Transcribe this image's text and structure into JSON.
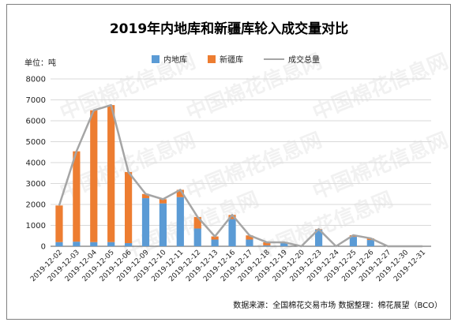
{
  "title": "2019年内地库和新疆库轮入成交量对比",
  "unit_label": "单位：吨",
  "source_text": "数据来源：全国棉花交易市场  数据整理：棉花展望（BCO）",
  "watermark_text": "中国棉花信息网",
  "watermark_url": "www.cottonchina.org.cn",
  "colors": {
    "inland": "#5b9bd5",
    "xinjiang": "#ed7d31",
    "total": "#a5a5a5",
    "grid": "#d9d9d9",
    "axis": "#595959"
  },
  "chart_data": {
    "type": "bar",
    "stacked": true,
    "title": "2019年内地库和新疆库轮入成交量对比",
    "ylabel": "单位：吨",
    "ylim": [
      0,
      8000
    ],
    "yticks": [
      0,
      1000,
      2000,
      3000,
      4000,
      5000,
      6000,
      7000,
      8000
    ],
    "grid": true,
    "legend_position": "top",
    "categories": [
      "2019-12-02",
      "2019-12-03",
      "2019-12-04",
      "2019-12-05",
      "2019-12-06",
      "2019-12-09",
      "2019-12-10",
      "2019-12-11",
      "2019-12-12",
      "2019-12-13",
      "2019-12-16",
      "2019-12-17",
      "2019-12-18",
      "2019-12-19",
      "2019-12-20",
      "2019-12-23",
      "2019-12-24",
      "2019-12-25",
      "2019-12-26",
      "2019-12-27",
      "2019-12-30",
      "2019-12-31"
    ],
    "series": [
      {
        "name": "内地库",
        "type": "bar",
        "values": [
          200,
          220,
          200,
          200,
          150,
          2300,
          2050,
          2350,
          850,
          320,
          1300,
          320,
          40,
          150,
          0,
          800,
          0,
          450,
          300,
          0,
          0,
          0
        ]
      },
      {
        "name": "新疆库",
        "type": "bar",
        "values": [
          1750,
          4320,
          6300,
          6550,
          3400,
          200,
          200,
          350,
          550,
          150,
          200,
          200,
          150,
          40,
          0,
          20,
          0,
          80,
          80,
          0,
          0,
          0
        ]
      },
      {
        "name": "成交总量",
        "type": "line",
        "values": [
          1950,
          4540,
          6500,
          6750,
          3550,
          2500,
          2250,
          2700,
          1400,
          470,
          1500,
          520,
          190,
          190,
          0,
          820,
          0,
          530,
          380,
          0,
          0,
          0
        ]
      }
    ]
  }
}
